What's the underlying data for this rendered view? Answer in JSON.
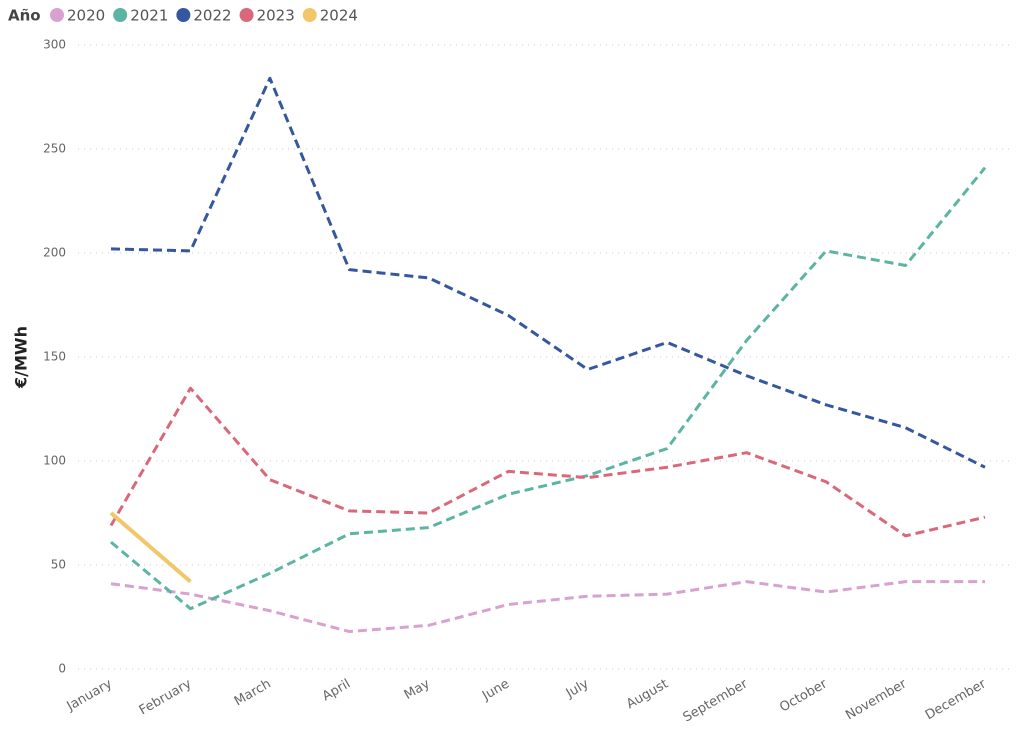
{
  "chart_data": {
    "type": "line",
    "legend_title": "Año",
    "y_label": "€/MWh",
    "categories": [
      "January",
      "February",
      "March",
      "April",
      "May",
      "June",
      "July",
      "August",
      "September",
      "October",
      "November",
      "December"
    ],
    "series": [
      {
        "name": "2020",
        "color": "#d9a1cf",
        "style": "dashed",
        "values": [
          41,
          36,
          28,
          18,
          21,
          31,
          35,
          36,
          42,
          37,
          42,
          42
        ]
      },
      {
        "name": "2021",
        "color": "#5bb5a2",
        "style": "dashed",
        "values": [
          61,
          29,
          46,
          65,
          68,
          84,
          93,
          106,
          158,
          201,
          194,
          241
        ]
      },
      {
        "name": "2022",
        "color": "#3457a0",
        "style": "dashed",
        "values": [
          202,
          201,
          284,
          192,
          188,
          170,
          144,
          157,
          141,
          127,
          116,
          97
        ]
      },
      {
        "name": "2023",
        "color": "#d9687a",
        "style": "dashed",
        "values": [
          69,
          135,
          91,
          76,
          75,
          95,
          92,
          97,
          104,
          90,
          64,
          73
        ]
      },
      {
        "name": "2024",
        "color": "#f2c76a",
        "style": "solid",
        "values": [
          75,
          42,
          null,
          null,
          null,
          null,
          null,
          null,
          null,
          null,
          null,
          null
        ]
      }
    ],
    "ylim": [
      0,
      300
    ],
    "yticks": [
      0,
      50,
      100,
      150,
      200,
      250,
      300
    ],
    "grid": true,
    "legend": "top-left"
  }
}
